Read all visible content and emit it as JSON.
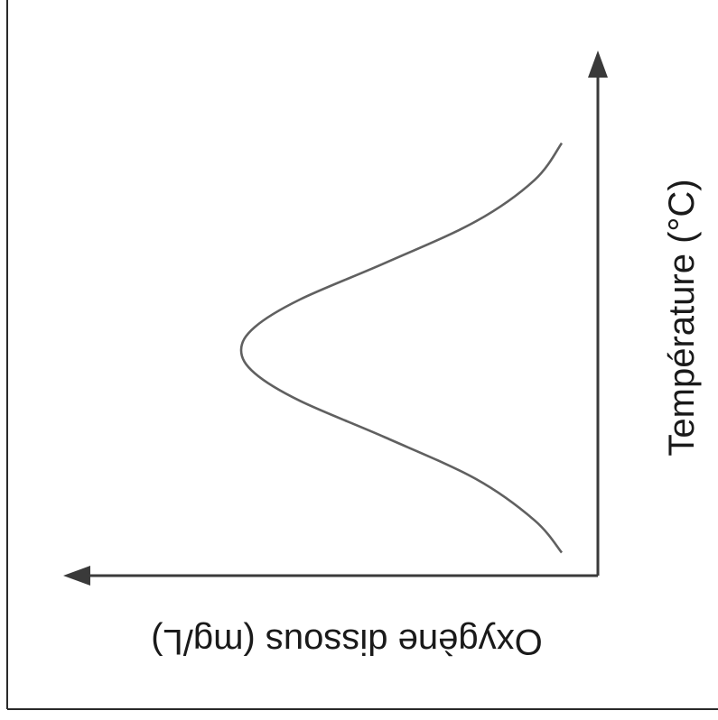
{
  "chart_data": {
    "type": "line",
    "title": "",
    "xlabel": "Oxygène dissous (mg/L)",
    "ylabel": "Température (°C)",
    "x_axis_direction": "right-to-left",
    "axis_ticks": "none",
    "grid": false,
    "series": [
      {
        "values_shape": "bell-like curve opening toward the oxygen axis origin",
        "points": [
          {
            "x": 0.08,
            "y": 0.05
          },
          {
            "x": 0.14,
            "y": 0.12
          },
          {
            "x": 0.27,
            "y": 0.21
          },
          {
            "x": 0.47,
            "y": 0.3
          },
          {
            "x": 0.66,
            "y": 0.38
          },
          {
            "x": 0.76,
            "y": 0.44
          },
          {
            "x": 0.79,
            "y": 0.49
          },
          {
            "x": 0.76,
            "y": 0.54
          },
          {
            "x": 0.66,
            "y": 0.6
          },
          {
            "x": 0.47,
            "y": 0.68
          },
          {
            "x": 0.27,
            "y": 0.77
          },
          {
            "x": 0.14,
            "y": 0.86
          },
          {
            "x": 0.08,
            "y": 0.94
          }
        ]
      }
    ],
    "color": "#606060"
  }
}
